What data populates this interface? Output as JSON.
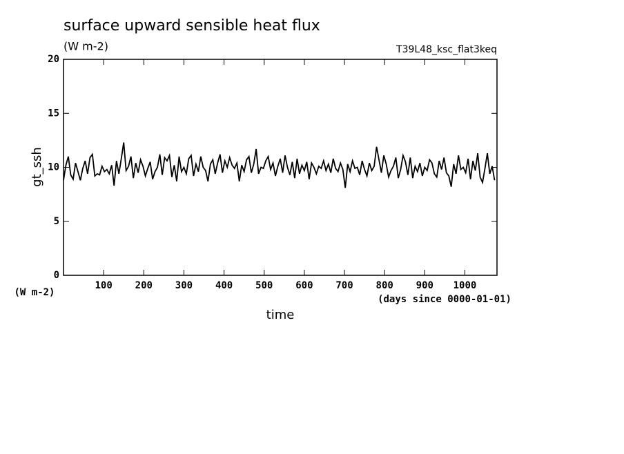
{
  "chart_data": {
    "type": "line",
    "title": "surface upward sensible heat flux",
    "subtitle": "(W m-2)",
    "annotation": "T39L48_ksc_flat3keq",
    "y_label": "gt_ssh",
    "y_units": "(W m-2)",
    "x_units": "(days since 0000-01-01)",
    "x_label": "time",
    "xlim": [
      0,
      1080
    ],
    "ylim": [
      0,
      20
    ],
    "xticks": [
      100,
      200,
      300,
      400,
      500,
      600,
      700,
      800,
      900,
      1000
    ],
    "yticks": [
      0,
      5,
      10,
      15,
      20
    ],
    "x": [
      0,
      6,
      12,
      18,
      24,
      30,
      36,
      42,
      48,
      54,
      60,
      66,
      72,
      78,
      84,
      90,
      96,
      102,
      108,
      114,
      120,
      126,
      132,
      138,
      144,
      150,
      156,
      162,
      168,
      174,
      180,
      186,
      192,
      198,
      204,
      210,
      216,
      222,
      228,
      234,
      240,
      246,
      252,
      258,
      264,
      270,
      276,
      282,
      288,
      294,
      300,
      306,
      312,
      318,
      324,
      330,
      336,
      342,
      348,
      354,
      360,
      366,
      372,
      378,
      384,
      390,
      396,
      402,
      408,
      414,
      420,
      426,
      432,
      438,
      444,
      450,
      456,
      462,
      468,
      474,
      480,
      486,
      492,
      498,
      504,
      510,
      516,
      522,
      528,
      534,
      540,
      546,
      552,
      558,
      564,
      570,
      576,
      582,
      588,
      594,
      600,
      606,
      612,
      618,
      624,
      630,
      636,
      642,
      648,
      654,
      660,
      666,
      672,
      678,
      684,
      690,
      696,
      702,
      708,
      714,
      720,
      726,
      732,
      738,
      744,
      750,
      756,
      762,
      768,
      774,
      780,
      786,
      792,
      798,
      804,
      810,
      816,
      822,
      828,
      834,
      840,
      846,
      852,
      858,
      864,
      870,
      876,
      882,
      888,
      894,
      900,
      906,
      912,
      918,
      924,
      930,
      936,
      942,
      948,
      954,
      960,
      966,
      972,
      978,
      984,
      990,
      996,
      1002,
      1008,
      1014,
      1020,
      1026,
      1032,
      1038,
      1044,
      1050,
      1056,
      1062,
      1068,
      1074
    ],
    "series": [
      {
        "color": "#000000",
        "values": [
          8.8,
          10.2,
          11.0,
          9.3,
          8.9,
          10.4,
          9.6,
          8.8,
          9.9,
          10.6,
          9.4,
          10.9,
          11.2,
          9.2,
          9.4,
          9.3,
          10.1,
          9.6,
          9.8,
          9.4,
          10.2,
          8.3,
          10.6,
          9.4,
          10.8,
          12.3,
          9.7,
          10.1,
          11.0,
          9.0,
          10.4,
          9.5,
          10.7,
          10.1,
          9.2,
          9.9,
          10.5,
          8.9,
          9.6,
          10.0,
          11.2,
          9.3,
          10.9,
          10.6,
          11.1,
          9.1,
          10.2,
          8.7,
          11.0,
          9.6,
          10.0,
          9.4,
          10.8,
          11.1,
          9.2,
          10.3,
          9.6,
          11.0,
          10.0,
          9.7,
          8.7,
          10.3,
          10.7,
          9.4,
          10.4,
          11.2,
          9.5,
          10.6,
          10.0,
          10.9,
          10.2,
          9.9,
          10.4,
          8.7,
          10.2,
          9.6,
          10.7,
          11.0,
          9.5,
          10.3,
          11.7,
          9.4,
          10.0,
          9.9,
          10.6,
          11.0,
          9.8,
          10.4,
          9.2,
          10.1,
          10.8,
          9.5,
          11.1,
          10.0,
          9.3,
          10.5,
          9.0,
          10.8,
          9.4,
          10.2,
          9.7,
          10.5,
          8.9,
          10.4,
          10.0,
          9.4,
          10.1,
          9.9,
          10.6,
          9.7,
          10.3,
          9.5,
          10.8,
          9.9,
          9.6,
          10.4,
          9.8,
          8.1,
          10.3,
          9.6,
          10.6,
          9.9,
          10.0,
          9.3,
          10.6,
          9.8,
          9.2,
          10.4,
          9.7,
          10.1,
          11.9,
          10.7,
          9.5,
          11.1,
          10.3,
          9.1,
          9.7,
          10.1,
          10.9,
          9.0,
          9.8,
          11.1,
          10.5,
          9.3,
          10.9,
          9.0,
          10.1,
          9.6,
          10.4,
          9.2,
          10.0,
          9.7,
          10.7,
          10.4,
          9.4,
          9.1,
          10.6,
          9.8,
          10.9,
          9.5,
          9.2,
          8.2,
          10.3,
          9.4,
          11.1,
          9.8,
          10.0,
          9.5,
          10.8,
          8.9,
          10.6,
          9.7,
          11.3,
          9.1,
          8.6,
          9.9,
          11.3,
          9.4,
          10.1,
          8.8
        ]
      }
    ]
  }
}
